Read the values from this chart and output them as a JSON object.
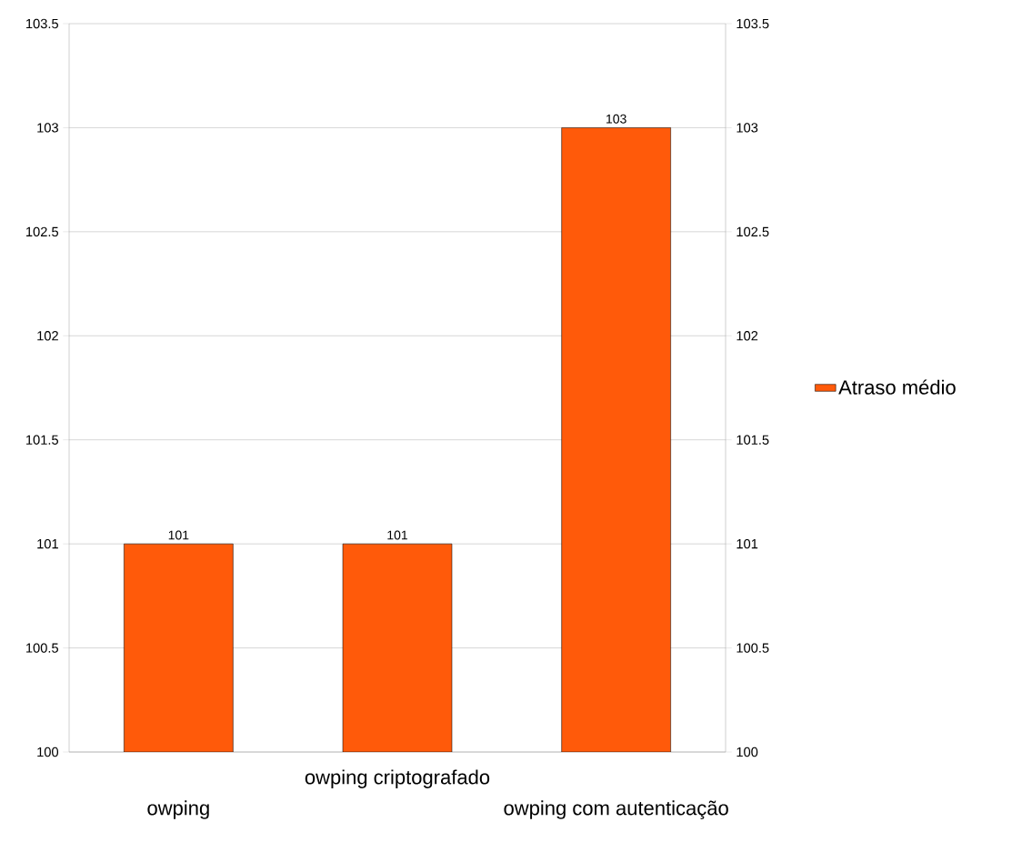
{
  "chart_data": {
    "type": "bar",
    "categories": [
      "owping",
      "owping criptografado",
      "owping com autenticação"
    ],
    "series": [
      {
        "name": "Atraso médio",
        "color": "#ff5a0a",
        "values": [
          101,
          101,
          103
        ]
      }
    ],
    "ylim": [
      100,
      103.5
    ],
    "yticks": [
      100,
      100.5,
      101,
      101.5,
      102,
      102.5,
      103,
      103.5
    ],
    "y2lim": [
      100,
      103.5
    ],
    "y2ticks": [
      100,
      100.5,
      101,
      101.5,
      102,
      102.5,
      103,
      103.5
    ],
    "grid": "y",
    "legend": "right",
    "data_labels": true
  }
}
